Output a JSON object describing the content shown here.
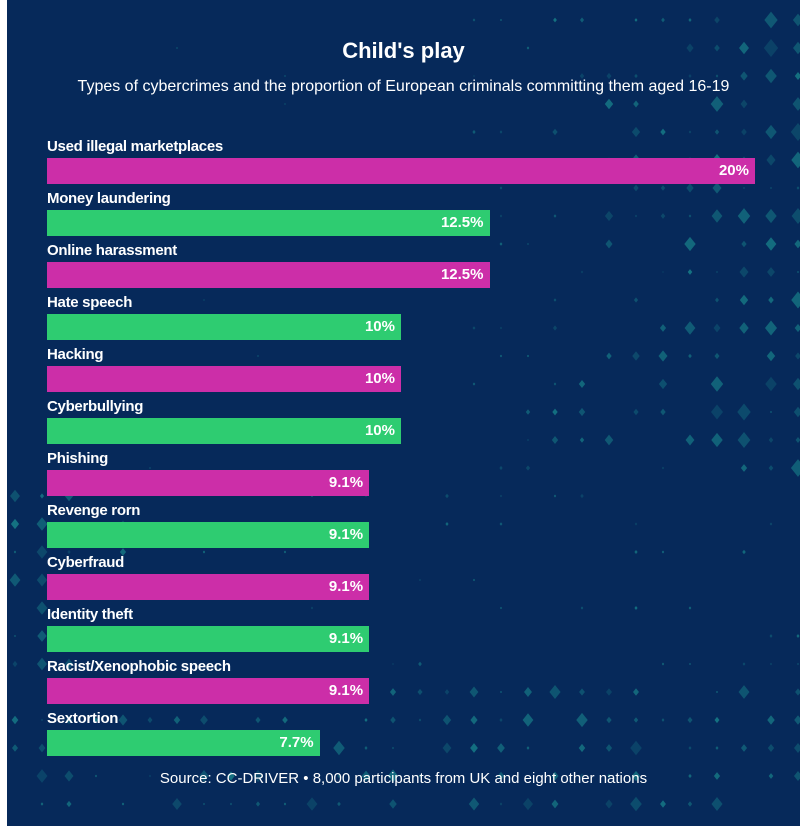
{
  "chart_data": {
    "type": "bar",
    "orientation": "horizontal",
    "title": "Child's play",
    "subtitle": "Types of cybercrimes and the proportion of European criminals committing them aged 16-19",
    "categories": [
      "Used illegal marketplaces",
      "Money laundering",
      "Online harassment",
      "Hate speech",
      "Hacking",
      "Cyberbullying",
      "Phishing",
      "Revenge rorn",
      "Cyberfraud",
      "Identity theft",
      "Racist/Xenophobic speech",
      "Sextortion"
    ],
    "values": [
      20,
      12.5,
      12.5,
      10,
      10,
      10,
      9.1,
      9.1,
      9.1,
      9.1,
      9.1,
      7.7
    ],
    "value_labels": [
      "20%",
      "12.5%",
      "12.5%",
      "10%",
      "10%",
      "10%",
      "9.1%",
      "9.1%",
      "9.1%",
      "9.1%",
      "9.1%",
      "7.7%"
    ],
    "unit": "%",
    "xlim": [
      0,
      20
    ],
    "grid": false,
    "bar_colors": [
      "#cc2ea8",
      "#2ecc71"
    ],
    "source": "Source: CC-DRIVER • 8,000 participants from UK and eight other nations"
  },
  "colors": {
    "background": "#06295a",
    "decoration": "#1a8a8f"
  }
}
